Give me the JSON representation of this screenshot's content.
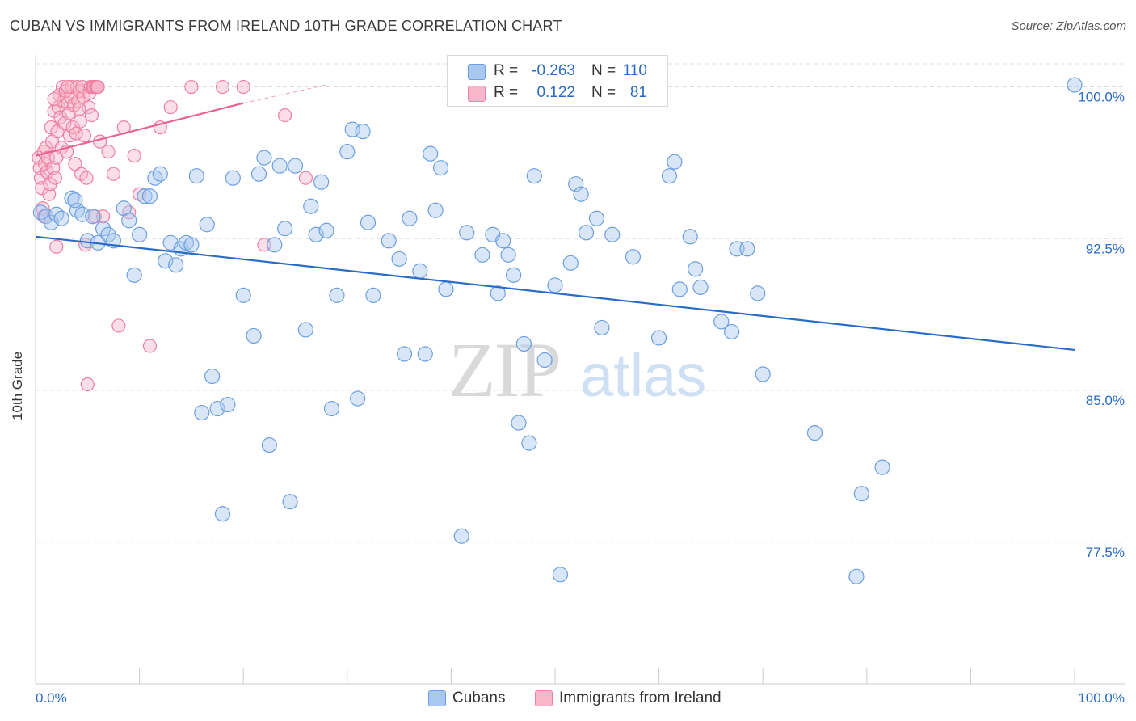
{
  "title": "CUBAN VS IMMIGRANTS FROM IRELAND 10TH GRADE CORRELATION CHART",
  "source": "Source: ZipAtlas.com",
  "watermark": {
    "zip": "ZIP",
    "atlas": "atlas"
  },
  "legend": {
    "rows": [
      {
        "r_label": "R =",
        "r_value": "-0.263",
        "n_label": "N =",
        "n_value": "110",
        "color": "#a8c8f0"
      },
      {
        "r_label": "R =",
        "r_value": "0.122",
        "n_label": "N =",
        "n_value": "81",
        "color": "#f7b6ca"
      }
    ]
  },
  "bottom_legend": [
    "Cubans",
    "Immigrants from Ireland"
  ],
  "chart_data": {
    "type": "scatter",
    "title": "CUBAN VS IMMIGRANTS FROM IRELAND 10TH GRADE CORRELATION CHART",
    "ylabel": "10th Grade",
    "xlabel": "",
    "xlim": [
      0,
      100
    ],
    "ylim": [
      70.5,
      101.5
    ],
    "x_tick_labels": [
      "0.0%",
      "100.0%"
    ],
    "y_ticks": [
      {
        "value": 77.5,
        "label": "77.5%"
      },
      {
        "value": 85.0,
        "label": "85.0%"
      },
      {
        "value": 92.5,
        "label": "92.5%"
      },
      {
        "value": 100.0,
        "label": "100.0%"
      }
    ],
    "grid": true,
    "legend_position": "top-center",
    "colors": {
      "blue_fill": "#a8c8f0",
      "blue_stroke": "#6b9fe0",
      "blue_line": "#2a6bc6",
      "pink_fill": "#f7b6ca",
      "pink_stroke": "#ef7fa3",
      "pink_line": "#e8638f",
      "tick_label": "#2a6bc6"
    },
    "series": [
      {
        "name": "Cubans",
        "r": -0.263,
        "n": 110,
        "trend": {
          "x": [
            0,
            100
          ],
          "y": [
            92.6,
            87.0
          ]
        },
        "points": [
          [
            0.5,
            93.8
          ],
          [
            1.0,
            93.6
          ],
          [
            1.5,
            93.3
          ],
          [
            2.0,
            93.7
          ],
          [
            2.5,
            93.5
          ],
          [
            3.5,
            94.5
          ],
          [
            4.0,
            93.9
          ],
          [
            3.8,
            94.4
          ],
          [
            4.5,
            93.7
          ],
          [
            5.0,
            92.4
          ],
          [
            5.5,
            93.6
          ],
          [
            6.0,
            92.3
          ],
          [
            6.5,
            93.0
          ],
          [
            7.0,
            92.7
          ],
          [
            7.5,
            92.4
          ],
          [
            8.5,
            94.0
          ],
          [
            9.0,
            93.4
          ],
          [
            9.5,
            90.7
          ],
          [
            10.0,
            92.7
          ],
          [
            10.5,
            94.6
          ],
          [
            11.0,
            94.6
          ],
          [
            11.5,
            95.5
          ],
          [
            12.0,
            95.7
          ],
          [
            12.5,
            91.4
          ],
          [
            13.0,
            92.3
          ],
          [
            13.5,
            91.2
          ],
          [
            14.0,
            92.0
          ],
          [
            14.5,
            92.3
          ],
          [
            15.0,
            92.2
          ],
          [
            15.5,
            95.6
          ],
          [
            16.0,
            83.9
          ],
          [
            16.5,
            93.2
          ],
          [
            17.0,
            85.7
          ],
          [
            17.5,
            84.1
          ],
          [
            18.0,
            78.9
          ],
          [
            18.5,
            84.3
          ],
          [
            19.0,
            95.5
          ],
          [
            20.0,
            89.7
          ],
          [
            21.0,
            87.7
          ],
          [
            21.5,
            95.7
          ],
          [
            22.0,
            96.5
          ],
          [
            22.5,
            82.3
          ],
          [
            23.0,
            92.2
          ],
          [
            23.5,
            96.1
          ],
          [
            24.0,
            93.0
          ],
          [
            24.5,
            79.5
          ],
          [
            25.0,
            96.1
          ],
          [
            26.0,
            88.0
          ],
          [
            26.5,
            94.1
          ],
          [
            27.0,
            92.7
          ],
          [
            27.5,
            95.3
          ],
          [
            28.0,
            92.9
          ],
          [
            28.5,
            84.1
          ],
          [
            29.0,
            89.7
          ],
          [
            30.0,
            96.8
          ],
          [
            30.5,
            97.9
          ],
          [
            31.0,
            84.6
          ],
          [
            31.5,
            97.8
          ],
          [
            32.0,
            93.3
          ],
          [
            32.5,
            89.7
          ],
          [
            34.0,
            92.4
          ],
          [
            35.0,
            91.5
          ],
          [
            35.5,
            86.8
          ],
          [
            36.0,
            93.5
          ],
          [
            37.0,
            90.9
          ],
          [
            37.5,
            86.8
          ],
          [
            38.0,
            96.7
          ],
          [
            38.5,
            93.9
          ],
          [
            39.0,
            96.0
          ],
          [
            39.5,
            90.0
          ],
          [
            41.0,
            77.8
          ],
          [
            41.5,
            92.8
          ],
          [
            43.0,
            91.7
          ],
          [
            44.0,
            92.7
          ],
          [
            44.5,
            89.8
          ],
          [
            45.0,
            92.4
          ],
          [
            45.5,
            91.7
          ],
          [
            46.0,
            90.7
          ],
          [
            46.5,
            83.4
          ],
          [
            47.0,
            87.3
          ],
          [
            47.5,
            82.4
          ],
          [
            48.0,
            95.6
          ],
          [
            49.0,
            86.5
          ],
          [
            50.0,
            90.2
          ],
          [
            50.5,
            75.9
          ],
          [
            51.5,
            91.3
          ],
          [
            52.0,
            95.2
          ],
          [
            52.5,
            94.7
          ],
          [
            53.0,
            92.8
          ],
          [
            54.0,
            93.5
          ],
          [
            54.5,
            88.1
          ],
          [
            55.5,
            92.7
          ],
          [
            57.5,
            91.6
          ],
          [
            60.0,
            87.6
          ],
          [
            61.0,
            95.6
          ],
          [
            61.5,
            96.3
          ],
          [
            62.0,
            90.0
          ],
          [
            63.0,
            92.6
          ],
          [
            63.5,
            91.0
          ],
          [
            64.0,
            90.1
          ],
          [
            66.0,
            88.4
          ],
          [
            67.0,
            87.9
          ],
          [
            67.5,
            92.0
          ],
          [
            68.5,
            92.0
          ],
          [
            69.5,
            89.8
          ],
          [
            70.0,
            85.8
          ],
          [
            75.0,
            82.9
          ],
          [
            79.5,
            79.9
          ],
          [
            81.5,
            81.2
          ],
          [
            79.0,
            75.8
          ],
          [
            100.0,
            100.1
          ]
        ]
      },
      {
        "name": "Immigrants from Ireland",
        "r": 0.122,
        "n": 81,
        "trend": {
          "x": [
            0,
            20
          ],
          "y": [
            96.6,
            99.2
          ]
        },
        "trend_dashed": {
          "x": [
            20,
            28
          ],
          "y": [
            99.2,
            100.1
          ]
        },
        "points": [
          [
            0.3,
            96.5
          ],
          [
            0.4,
            96.0
          ],
          [
            0.5,
            95.5
          ],
          [
            0.6,
            95.0
          ],
          [
            0.7,
            94.0
          ],
          [
            0.8,
            96.8
          ],
          [
            0.9,
            96.2
          ],
          [
            1.0,
            97.0
          ],
          [
            1.1,
            95.8
          ],
          [
            1.2,
            96.5
          ],
          [
            1.3,
            94.7
          ],
          [
            1.4,
            95.2
          ],
          [
            1.5,
            98.0
          ],
          [
            1.6,
            97.3
          ],
          [
            1.7,
            96.0
          ],
          [
            1.8,
            98.8
          ],
          [
            1.9,
            95.5
          ],
          [
            2.0,
            96.5
          ],
          [
            2.1,
            97.8
          ],
          [
            2.2,
            99.0
          ],
          [
            2.3,
            99.6
          ],
          [
            2.4,
            98.5
          ],
          [
            2.5,
            97.0
          ],
          [
            2.6,
            100.0
          ],
          [
            2.7,
            99.3
          ],
          [
            2.8,
            98.2
          ],
          [
            2.9,
            99.8
          ],
          [
            3.0,
            96.8
          ],
          [
            3.1,
            99.2
          ],
          [
            3.2,
            98.7
          ],
          [
            3.3,
            97.6
          ],
          [
            3.4,
            99.5
          ],
          [
            3.5,
            100.0
          ],
          [
            3.6,
            98.0
          ],
          [
            3.7,
            99.1
          ],
          [
            3.8,
            96.2
          ],
          [
            3.9,
            97.7
          ],
          [
            4.0,
            100.0
          ],
          [
            4.1,
            99.3
          ],
          [
            4.2,
            99.8
          ],
          [
            4.3,
            98.3
          ],
          [
            4.4,
            95.7
          ],
          [
            4.5,
            100.0
          ],
          [
            4.6,
            99.5
          ],
          [
            4.7,
            97.6
          ],
          [
            4.8,
            92.2
          ],
          [
            4.9,
            95.5
          ],
          [
            5.0,
            85.3
          ],
          [
            5.1,
            99.0
          ],
          [
            5.2,
            99.7
          ],
          [
            5.3,
            100.0
          ],
          [
            5.4,
            98.6
          ],
          [
            5.5,
            100.0
          ],
          [
            5.6,
            100.0
          ],
          [
            5.7,
            93.6
          ],
          [
            5.8,
            100.0
          ],
          [
            5.9,
            100.0
          ],
          [
            6.0,
            100.0
          ],
          [
            6.2,
            97.3
          ],
          [
            6.5,
            93.6
          ],
          [
            7.0,
            96.8
          ],
          [
            7.5,
            95.7
          ],
          [
            8.0,
            88.2
          ],
          [
            8.5,
            98.0
          ],
          [
            9.0,
            93.8
          ],
          [
            9.5,
            96.6
          ],
          [
            10.0,
            94.7
          ],
          [
            11.0,
            87.2
          ],
          [
            12.0,
            98.0
          ],
          [
            13.0,
            99.0
          ],
          [
            15.0,
            100.0
          ],
          [
            18.0,
            100.0
          ],
          [
            20.0,
            100.0
          ],
          [
            22.0,
            92.2
          ],
          [
            24.0,
            98.6
          ],
          [
            26.0,
            95.5
          ],
          [
            4.2,
            98.9
          ],
          [
            2.0,
            92.1
          ],
          [
            1.8,
            99.4
          ],
          [
            3.1,
            100.0
          ],
          [
            0.8,
            93.6
          ]
        ]
      }
    ]
  }
}
